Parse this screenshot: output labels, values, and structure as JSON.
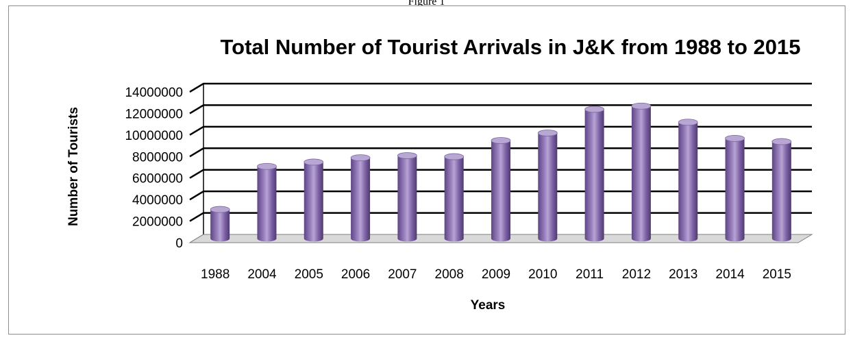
{
  "header": {
    "caption": "Figure 1"
  },
  "chart_data": {
    "type": "bar",
    "title": "Total Number of Tourist Arrivals in J&K from 1988 to 2015",
    "xlabel": "Years",
    "ylabel": "Number of Tourists",
    "categories": [
      "1988",
      "2004",
      "2005",
      "2006",
      "2007",
      "2008",
      "2009",
      "2010",
      "2011",
      "2012",
      "2013",
      "2014",
      "2015"
    ],
    "values": [
      2700000,
      6700000,
      7100000,
      7500000,
      7700000,
      7600000,
      9100000,
      9800000,
      12000000,
      12300000,
      10800000,
      9300000,
      9000000
    ],
    "ylim": [
      0,
      14000000
    ],
    "yticks": [
      "0",
      "2000000",
      "4000000",
      "6000000",
      "8000000",
      "10000000",
      "12000000",
      "14000000"
    ],
    "grid": true,
    "legend": "none",
    "colors": {
      "bar": "#8064a2",
      "bar_light": "#b9a7d3",
      "bar_dark": "#4f3a6e",
      "grid": "#000000",
      "floor": "#d9d9d9"
    }
  }
}
